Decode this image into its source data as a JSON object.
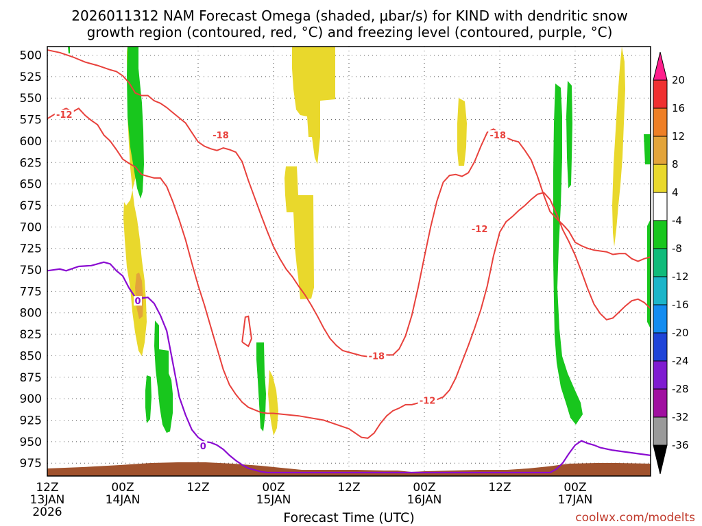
{
  "chart_data": {
    "type": "time-height",
    "title_lines": [
      "2026011312 NAM Forecast Omega (shaded, μbar/s) for KIND with dendritic snow",
      "growth region (contoured, red, °C) and freezing level (contoured, purple, °C)"
    ],
    "xlabel": "Forecast Time (UTC)",
    "credit": "coolwx.com/modelts",
    "xlim_hours": [
      0,
      96
    ],
    "ylim_hpa": [
      490,
      990
    ],
    "pressure_ticks": [
      500,
      525,
      550,
      575,
      600,
      625,
      650,
      675,
      700,
      725,
      750,
      775,
      800,
      825,
      850,
      875,
      900,
      925,
      950,
      975
    ],
    "time_ticks": [
      {
        "hour": 0,
        "lines": [
          "12Z",
          "13JAN",
          "2026"
        ]
      },
      {
        "hour": 12,
        "lines": [
          "00Z",
          "14JAN"
        ]
      },
      {
        "hour": 24,
        "lines": [
          "12Z"
        ]
      },
      {
        "hour": 36,
        "lines": [
          "00Z",
          "15JAN"
        ]
      },
      {
        "hour": 48,
        "lines": [
          "12Z"
        ]
      },
      {
        "hour": 60,
        "lines": [
          "00Z",
          "16JAN"
        ]
      },
      {
        "hour": 72,
        "lines": [
          "12Z"
        ]
      },
      {
        "hour": 84,
        "lines": [
          "00Z",
          "17JAN"
        ]
      }
    ],
    "colorbar": {
      "labels": [
        20,
        16,
        12,
        8,
        4,
        -4,
        -8,
        -12,
        -16,
        -20,
        -24,
        -28,
        -32,
        -36
      ],
      "colors": [
        "#ff1e8c",
        "#f03030",
        "#ee7f26",
        "#e3a43a",
        "#e9d82c",
        "#ffffff",
        "#18c61d",
        "#10bb7a",
        "#1cb5c9",
        "#148cf0",
        "#1f44d8",
        "#7f1bd1",
        "#a00fa0",
        "#9a9a9a",
        "#000000"
      ]
    },
    "contour_labels": [
      {
        "text": "-12",
        "hour": 2.7,
        "hpa": 569,
        "color": "#e8413c"
      },
      {
        "text": "-18",
        "hour": 27.6,
        "hpa": 593,
        "color": "#e8413c"
      },
      {
        "text": "-18",
        "hour": 71.7,
        "hpa": 593,
        "color": "#e8413c"
      },
      {
        "text": "-12",
        "hour": 68.8,
        "hpa": 702,
        "color": "#e8413c"
      },
      {
        "text": "-18",
        "hour": 52.4,
        "hpa": 850,
        "color": "#e8413c"
      },
      {
        "text": "-12",
        "hour": 60.5,
        "hpa": 902,
        "color": "#e8413c"
      },
      {
        "text": "0",
        "hour": 14.4,
        "hpa": 786,
        "color": "#8a0bd1"
      },
      {
        "text": "0",
        "hour": 24.8,
        "hpa": 955,
        "color": "#8a0bd1"
      }
    ],
    "freezing_level_0C": [
      [
        0,
        751
      ],
      [
        2,
        749
      ],
      [
        3,
        751
      ],
      [
        5,
        746
      ],
      [
        7,
        745
      ],
      [
        9,
        741
      ],
      [
        10,
        743
      ],
      [
        11,
        751
      ],
      [
        12,
        757
      ],
      [
        13,
        771
      ],
      [
        14,
        782
      ],
      [
        15,
        783
      ],
      [
        16,
        782
      ],
      [
        17,
        789
      ],
      [
        18,
        803
      ],
      [
        19,
        821
      ],
      [
        20,
        859
      ],
      [
        21,
        898
      ],
      [
        22,
        919
      ],
      [
        23,
        936
      ],
      [
        24,
        945
      ],
      [
        25,
        950
      ],
      [
        26,
        951
      ],
      [
        27,
        954
      ],
      [
        28,
        959
      ],
      [
        29,
        966
      ],
      [
        30,
        972
      ],
      [
        31,
        977
      ],
      [
        32,
        981
      ],
      [
        33,
        983
      ],
      [
        34,
        985
      ],
      [
        35,
        986
      ],
      [
        36,
        986
      ],
      [
        37,
        986
      ],
      [
        48,
        986
      ],
      [
        60,
        986
      ],
      [
        72,
        986
      ],
      [
        80,
        986
      ],
      [
        81,
        982
      ],
      [
        82,
        975
      ],
      [
        83,
        964
      ],
      [
        84,
        954
      ],
      [
        85,
        949
      ],
      [
        86,
        952
      ],
      [
        87,
        954
      ],
      [
        88,
        957
      ],
      [
        90,
        960
      ],
      [
        92,
        962
      ],
      [
        94,
        964
      ],
      [
        96,
        966
      ]
    ],
    "dgz_minus12C": [
      [
        [
          0,
          574
        ],
        [
          2,
          565
        ],
        [
          3,
          562
        ],
        [
          4,
          566
        ],
        [
          5,
          562
        ],
        [
          6,
          570
        ],
        [
          7,
          576
        ],
        [
          8,
          581
        ],
        [
          9,
          593
        ],
        [
          10,
          600
        ],
        [
          11,
          610
        ],
        [
          12,
          621
        ],
        [
          13,
          626
        ],
        [
          14,
          630
        ],
        [
          15,
          639
        ],
        [
          16,
          641
        ],
        [
          17,
          643
        ],
        [
          18,
          643
        ],
        [
          19,
          653
        ],
        [
          20,
          671
        ],
        [
          21,
          692
        ],
        [
          22,
          715
        ],
        [
          23,
          742
        ],
        [
          24,
          768
        ],
        [
          25,
          791
        ],
        [
          26,
          816
        ],
        [
          27,
          841
        ],
        [
          28,
          866
        ],
        [
          29,
          884
        ],
        [
          30,
          895
        ],
        [
          31,
          904
        ],
        [
          32,
          910
        ],
        [
          33,
          913
        ],
        [
          34,
          916
        ],
        [
          35,
          917
        ],
        [
          36,
          917
        ],
        [
          40,
          920
        ],
        [
          44,
          925
        ],
        [
          46,
          930
        ],
        [
          48,
          935
        ],
        [
          49,
          940
        ],
        [
          50,
          945
        ],
        [
          51,
          946
        ],
        [
          52,
          940
        ],
        [
          53,
          929
        ],
        [
          54,
          920
        ],
        [
          55,
          914
        ],
        [
          56,
          911
        ],
        [
          57,
          907
        ],
        [
          58,
          907
        ],
        [
          59,
          905
        ],
        [
          60,
          905
        ],
        [
          61,
          902
        ],
        [
          62,
          901
        ],
        [
          63,
          898
        ],
        [
          64,
          890
        ],
        [
          65,
          876
        ],
        [
          66,
          857
        ],
        [
          67,
          838
        ],
        [
          68,
          818
        ],
        [
          69,
          796
        ],
        [
          70,
          769
        ],
        [
          71,
          734
        ],
        [
          72,
          706
        ],
        [
          73,
          694
        ],
        [
          74,
          688
        ],
        [
          75,
          681
        ],
        [
          76,
          675
        ],
        [
          77,
          668
        ],
        [
          78,
          662
        ],
        [
          79,
          660
        ],
        [
          80,
          668
        ],
        [
          81,
          684
        ],
        [
          82,
          703
        ],
        [
          83,
          717
        ],
        [
          84,
          733
        ],
        [
          85,
          752
        ],
        [
          86,
          772
        ],
        [
          87,
          790
        ],
        [
          88,
          801
        ],
        [
          89,
          808
        ],
        [
          90,
          806
        ],
        [
          91,
          799
        ],
        [
          92,
          792
        ],
        [
          93,
          786
        ],
        [
          94,
          784
        ],
        [
          95,
          788
        ],
        [
          96,
          795
        ]
      ],
      [
        [
          31,
          834
        ],
        [
          31.5,
          805
        ],
        [
          32,
          804
        ],
        [
          32.5,
          830
        ],
        [
          32,
          839
        ],
        [
          31,
          834
        ]
      ]
    ],
    "dgz_minus18C": [
      [
        [
          0,
          494
        ],
        [
          2,
          497
        ],
        [
          4,
          502
        ],
        [
          6,
          508
        ],
        [
          8,
          512
        ],
        [
          10,
          517
        ],
        [
          11,
          519
        ],
        [
          12,
          524
        ],
        [
          13,
          532
        ],
        [
          14,
          544
        ],
        [
          15,
          547
        ],
        [
          16,
          547
        ],
        [
          17,
          553
        ],
        [
          18,
          556
        ],
        [
          19,
          561
        ],
        [
          20,
          567
        ],
        [
          21,
          573
        ],
        [
          22,
          579
        ],
        [
          23,
          590
        ],
        [
          24,
          601
        ],
        [
          25,
          606
        ],
        [
          26,
          609
        ],
        [
          27,
          611
        ],
        [
          28,
          608
        ],
        [
          29,
          610
        ],
        [
          30,
          613
        ],
        [
          31,
          624
        ],
        [
          32,
          646
        ],
        [
          33,
          666
        ],
        [
          34,
          686
        ],
        [
          35,
          705
        ],
        [
          36,
          723
        ],
        [
          37,
          737
        ],
        [
          38,
          749
        ],
        [
          39,
          758
        ],
        [
          40,
          769
        ],
        [
          41,
          779
        ],
        [
          42,
          791
        ],
        [
          43,
          804
        ],
        [
          44,
          818
        ],
        [
          45,
          830
        ],
        [
          46,
          838
        ],
        [
          47,
          844
        ],
        [
          48,
          846
        ],
        [
          49,
          848
        ],
        [
          50,
          850
        ],
        [
          52,
          852
        ],
        [
          53,
          851
        ],
        [
          54,
          849
        ],
        [
          55,
          849
        ],
        [
          56,
          842
        ],
        [
          57,
          827
        ],
        [
          58,
          803
        ],
        [
          59,
          771
        ],
        [
          60,
          735
        ],
        [
          61,
          700
        ],
        [
          62,
          670
        ],
        [
          63,
          648
        ],
        [
          64,
          640
        ],
        [
          65,
          639
        ],
        [
          66,
          641
        ],
        [
          67,
          637
        ],
        [
          68,
          624
        ],
        [
          69,
          606
        ],
        [
          70,
          590
        ],
        [
          71,
          586
        ],
        [
          72,
          591
        ],
        [
          73,
          596
        ],
        [
          74,
          599
        ],
        [
          75,
          601
        ],
        [
          76,
          611
        ],
        [
          77,
          622
        ],
        [
          78,
          641
        ],
        [
          79,
          663
        ],
        [
          80,
          682
        ],
        [
          81,
          690
        ],
        [
          82,
          697
        ],
        [
          83,
          705
        ],
        [
          84,
          718
        ],
        [
          85,
          722
        ],
        [
          86,
          725
        ],
        [
          87,
          727
        ],
        [
          88,
          728
        ],
        [
          89,
          729
        ],
        [
          90,
          732
        ],
        [
          91,
          731
        ],
        [
          92,
          731
        ],
        [
          93,
          737
        ],
        [
          94,
          740
        ],
        [
          95,
          737
        ],
        [
          96,
          735
        ]
      ]
    ]
  }
}
